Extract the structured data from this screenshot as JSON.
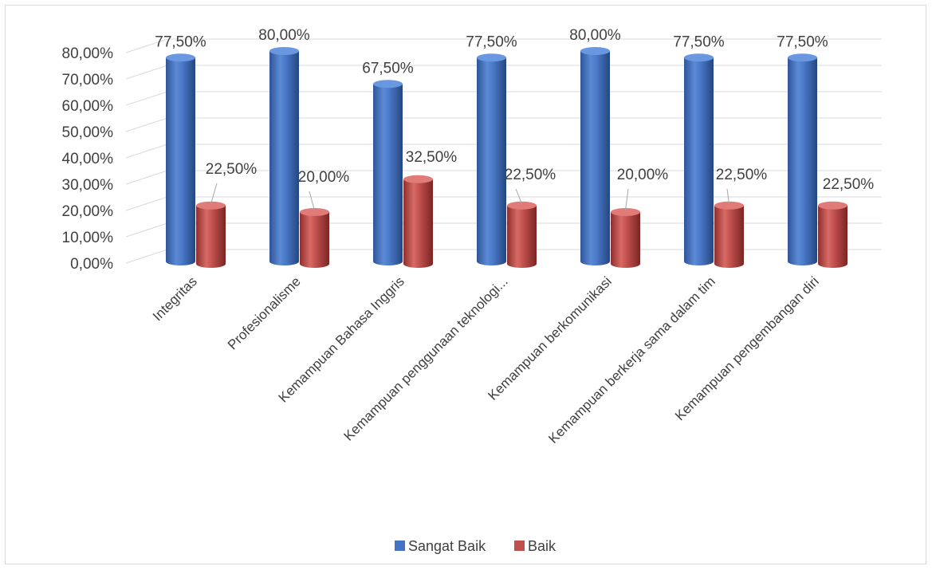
{
  "chart_data": {
    "type": "bar",
    "style": "3d-cylinder",
    "categories": [
      "Integritas",
      "Profesionalisme",
      "Kemampuan Bahasa Inggris",
      "Kemampuan penggunaan teknologi...",
      "Kemampuan berkomunikasi",
      "Kemampuan berkerja sama dalam tim",
      "Kemampuan pengembangan diri"
    ],
    "series": [
      {
        "name": "Sangat Baik",
        "color": "#4472c4",
        "values": [
          77.5,
          80,
          67.5,
          77.5,
          80,
          77.5,
          77.5
        ],
        "labels": [
          "77,50%",
          "80,00%",
          "67,50%",
          "77,50%",
          "80,00%",
          "77,50%",
          "77,50%"
        ]
      },
      {
        "name": "Baik",
        "color": "#c0504d",
        "values": [
          22.5,
          20,
          32.5,
          22.5,
          20,
          22.5,
          22.5
        ],
        "labels": [
          "22,50%",
          "20,00%",
          "32,50%",
          "22,50%",
          "20,00%",
          "22,50%",
          "22,50%"
        ]
      }
    ],
    "yticks": [
      "0,00%",
      "10,00%",
      "20,00%",
      "30,00%",
      "40,00%",
      "50,00%",
      "60,00%",
      "70,00%",
      "80,00%"
    ],
    "ylim": [
      0,
      80
    ],
    "grid": true,
    "legend_position": "bottom",
    "title": "",
    "xlabel": "",
    "ylabel": ""
  }
}
